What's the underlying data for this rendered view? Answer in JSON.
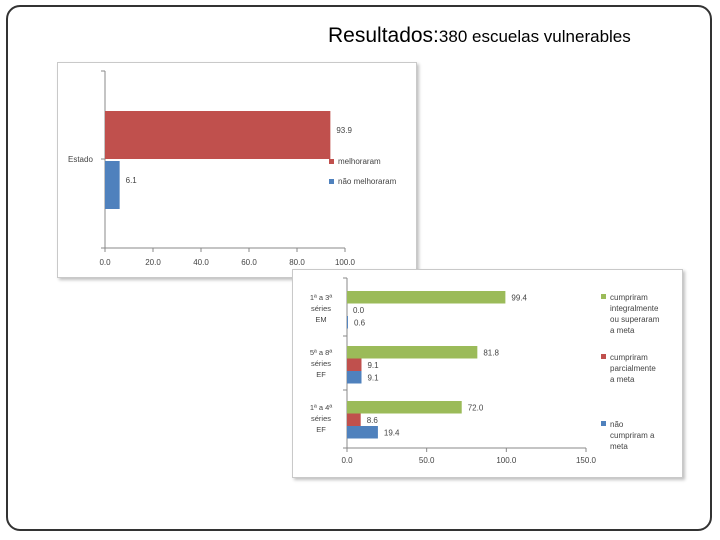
{
  "slide": {
    "title_main": "Resultados:",
    "title_sub": "380 escuelas vulnerables"
  },
  "chart_data": [
    {
      "type": "bar",
      "orientation": "horizontal",
      "categories": [
        "Estado"
      ],
      "series": [
        {
          "name": "melhoraram",
          "values": [
            93.9
          ],
          "color": "#c0504d"
        },
        {
          "name": "não melhoraram",
          "values": [
            6.1
          ],
          "color": "#4f81bd"
        }
      ],
      "data_labels": [
        "93.9",
        "6.1"
      ],
      "xticks": [
        "0.0",
        "20.0",
        "40.0",
        "60.0",
        "80.0",
        "100.0"
      ],
      "xlim": [
        0,
        100
      ],
      "legend": "right"
    },
    {
      "type": "bar",
      "orientation": "horizontal",
      "categories": [
        [
          "1ª a 3ª",
          "séries",
          "EM"
        ],
        [
          "5ª a 8ª",
          "séries",
          "EF"
        ],
        [
          "1ª a 4ª",
          "séries",
          "EF"
        ]
      ],
      "series": [
        {
          "name": "cumpriram integralmente ou superaram a meta",
          "legend_lines": [
            "cumpriram",
            "integralmente",
            "ou superaram",
            "a meta"
          ],
          "values": [
            99.4,
            81.8,
            72.0
          ],
          "labels": [
            "99.4",
            "81.8",
            "72.0"
          ],
          "color": "#9bbb59"
        },
        {
          "name": "cumpriram parcialmente a meta",
          "legend_lines": [
            "cumpriram",
            "parcialmente",
            "a meta"
          ],
          "values": [
            0.0,
            9.1,
            8.6
          ],
          "labels": [
            "0.0",
            "9.1",
            "8.6"
          ],
          "color": "#c0504d"
        },
        {
          "name": "não cumpriram a meta",
          "legend_lines": [
            "não",
            "cumpriram a",
            "meta"
          ],
          "values": [
            0.6,
            9.1,
            19.4
          ],
          "labels": [
            "0.6",
            "9.1",
            "19.4"
          ],
          "color": "#4f81bd"
        }
      ],
      "xticks": [
        "0.0",
        "50.0",
        "100.0",
        "150.0"
      ],
      "xlim": [
        0,
        150
      ],
      "legend": "right"
    }
  ]
}
